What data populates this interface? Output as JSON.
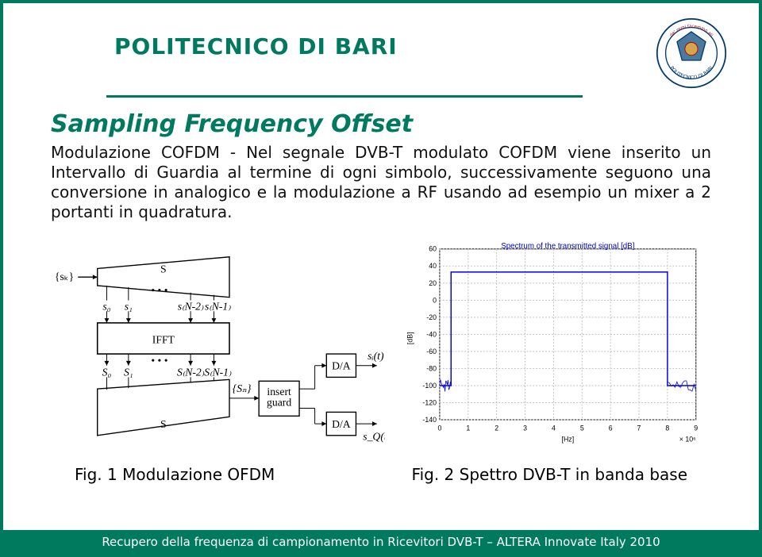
{
  "header": {
    "title": "POLITECNICO DI BARI",
    "logo_outer_text_top": "de' remi facemmo ali",
    "logo_outer_text_bottom": "POLITECNICO DI BARI"
  },
  "section": {
    "title": "Sampling Frequency Offset",
    "body": "Modulazione COFDM - Nel segnale DVB-T modulato COFDM viene inserito un Intervallo di Guardia al termine di ogni simbolo, successivamente seguono una conversione in analogico e la modulazione a RF usando ad esempio un mixer a 2 portanti in quadratura."
  },
  "diagram": {
    "input_label": "{sₖ}",
    "s_upper": "S",
    "taps_top": [
      "s₀",
      "s₁",
      "…",
      "s₍N-2₎",
      "s₍N-1₎"
    ],
    "ifft": "IFFT",
    "taps_bot": [
      "S₀",
      "S₁",
      "…",
      "S₍N-2₎",
      "S₍N-1₎"
    ],
    "s_lower": "S",
    "sn_label": "{Sₙ}",
    "insert_guard": "insert\nguard",
    "da": "D/A",
    "out_top": "sᵢ(t)",
    "out_bot": "s_Q(t)",
    "caption": "Fig. 1  Modulazione OFDM"
  },
  "chart": {
    "title": "Spectrum of the transmitted signal [dB]",
    "ylabel": "[dB]",
    "xlabel": "[Hz]",
    "x_multiplier": "× 10⁶",
    "yticks": [
      -140,
      -120,
      -100,
      -80,
      -60,
      -40,
      -20,
      0,
      20,
      40,
      60
    ],
    "xticks": [
      0,
      1,
      2,
      3,
      4,
      5,
      6,
      7,
      8,
      9
    ],
    "ylim": [
      -140,
      60
    ],
    "xlim": [
      0,
      9
    ],
    "flat_top_y": 33,
    "noise_floor_y": -100,
    "band_start_x": 0.4,
    "band_end_x": 8.0,
    "line_color": "#0000ee",
    "grid_color": "#bfbfbf",
    "background": "#ffffff",
    "caption": "Fig. 2 Spettro DVB-T in banda base"
  },
  "footer": {
    "text": "Recupero della frequenza di campionamento in Ricevitori DVB-T – ALTERA Innovate Italy 2010"
  },
  "colors": {
    "brand_green": "#007a5e",
    "brand_red": "#b40000"
  }
}
